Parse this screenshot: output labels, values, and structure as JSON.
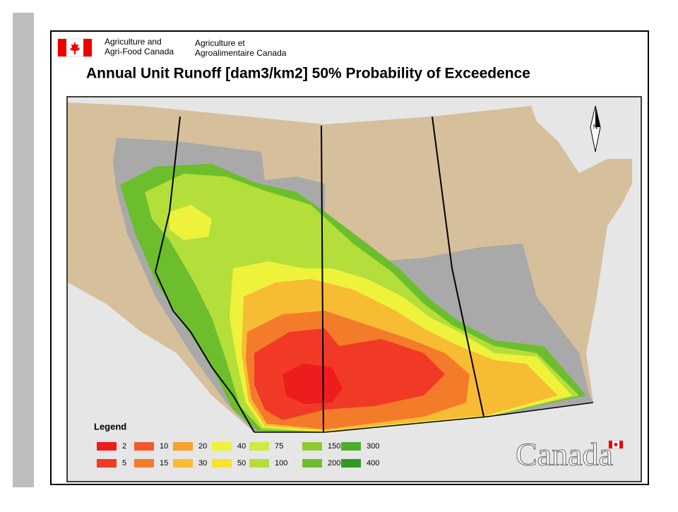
{
  "header": {
    "org_en_1": "Agriculture and",
    "org_en_2": "Agri-Food Canada",
    "org_fr_1": "Agriculture et",
    "org_fr_2": "Agroalimentaire Canada"
  },
  "map": {
    "title": "Annual Unit Runoff [dam3/km2] 50% Probability of Exceedence",
    "compass": "N"
  },
  "legend": {
    "title": "Legend",
    "items": [
      {
        "value": 2,
        "color": "#ee1c1c"
      },
      {
        "value": 5,
        "color": "#f03a26"
      },
      {
        "value": 10,
        "color": "#f2592a"
      },
      {
        "value": 15,
        "color": "#f47b2a"
      },
      {
        "value": 20,
        "color": "#f7a02e"
      },
      {
        "value": 30,
        "color": "#f8bb34"
      },
      {
        "value": 40,
        "color": "#eef23a"
      },
      {
        "value": 50,
        "color": "#f9e12c"
      },
      {
        "value": 75,
        "color": "#d0ea40"
      },
      {
        "value": 100,
        "color": "#b4de3a"
      },
      {
        "value": 150,
        "color": "#8ccc2e"
      },
      {
        "value": 200,
        "color": "#6cbe2c"
      },
      {
        "value": 300,
        "color": "#4cae2a"
      },
      {
        "value": 400,
        "color": "#2f9a26"
      }
    ]
  },
  "wordmark": "Canada"
}
